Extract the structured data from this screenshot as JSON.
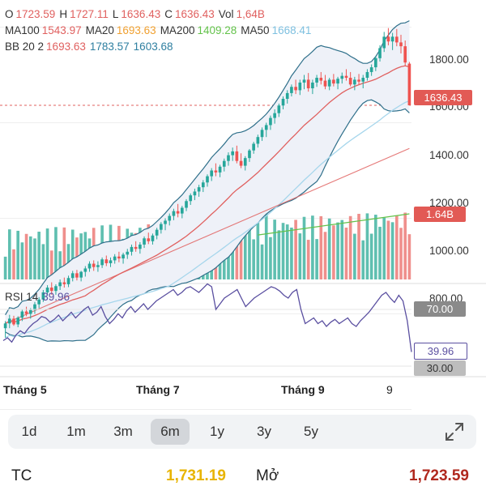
{
  "header": {
    "line1": [
      {
        "label": "O",
        "value": "1723.59",
        "color": "#e0605f"
      },
      {
        "label": "H",
        "value": "1727.11",
        "color": "#e0605f"
      },
      {
        "label": "L",
        "value": "1636.43",
        "color": "#e0605f"
      },
      {
        "label": "C",
        "value": "1636.43",
        "color": "#e0605f"
      },
      {
        "label": "Vol",
        "value": "1,64B",
        "color": "#e0605f"
      }
    ],
    "line2": [
      {
        "label": "MA100",
        "value": "1543.97",
        "color": "#e0605f"
      },
      {
        "label": "MA20",
        "value": "1693.63",
        "color": "#f0a030"
      },
      {
        "label": "MA200",
        "value": "1409.28",
        "color": "#63c24a"
      },
      {
        "label": "MA50",
        "value": "1668.41",
        "color": "#7ec0e0"
      }
    ],
    "line3": [
      {
        "label": "BB 20 2",
        "value": "1693.63",
        "color": "#e0605f"
      },
      {
        "label": "",
        "value": "1783.57",
        "color": "#2e7fa0"
      },
      {
        "label": "",
        "value": "1603.68",
        "color": "#2e7fa0"
      }
    ],
    "rsi": {
      "label": "RSI 14",
      "value": "39.96",
      "color": "#5a4fa0"
    }
  },
  "price_axis": [
    "1800.00",
    "1600.00",
    "1400.00",
    "1200.00",
    "1000.00",
    "800.00"
  ],
  "tags": {
    "last_price": "1636.43",
    "volume": "1.64B",
    "rsi_upper": "70.00",
    "rsi_value": "39.96",
    "rsi_lower": "30.00"
  },
  "months": [
    "Tháng 5",
    "Tháng 7",
    "Tháng 9",
    "9"
  ],
  "ranges": {
    "items": [
      "1d",
      "1m",
      "3m",
      "6m",
      "1y",
      "3y",
      "5y"
    ],
    "selected": "6m"
  },
  "footer": {
    "left_label": "TC",
    "left_value": "1,731.19",
    "right_label": "Mở",
    "right_value": "1,723.59"
  },
  "colors": {
    "up": "#26a69a",
    "down": "#ef5350",
    "vol_up": "#5fbfb0",
    "vol_down": "#ef8f8c",
    "ma100": "#e0605f",
    "ma20": "#f0a030",
    "ma200": "#63c24a",
    "ma50": "#a6d6ec",
    "bb": "#2e6f8a",
    "rsi": "#5a4fa0",
    "tc_value": "#e8b400",
    "open_value": "#b0281e"
  },
  "chart_data": {
    "type": "candlestick",
    "price_range": [
      700,
      1900
    ],
    "ohlc": [
      [
        1170,
        1185,
        1150,
        1180
      ],
      [
        1180,
        1198,
        1170,
        1190
      ],
      [
        1190,
        1196,
        1175,
        1178
      ],
      [
        1178,
        1195,
        1172,
        1192
      ],
      [
        1192,
        1210,
        1185,
        1205
      ],
      [
        1205,
        1215,
        1195,
        1200
      ],
      [
        1200,
        1212,
        1190,
        1208
      ],
      [
        1208,
        1225,
        1200,
        1220
      ],
      [
        1220,
        1235,
        1212,
        1230
      ],
      [
        1230,
        1250,
        1225,
        1245
      ],
      [
        1245,
        1260,
        1238,
        1255
      ],
      [
        1255,
        1266,
        1240,
        1248
      ],
      [
        1248,
        1262,
        1240,
        1258
      ],
      [
        1258,
        1272,
        1250,
        1266
      ],
      [
        1266,
        1276,
        1255,
        1262
      ],
      [
        1262,
        1280,
        1256,
        1275
      ],
      [
        1275,
        1290,
        1268,
        1285
      ],
      [
        1285,
        1292,
        1270,
        1276
      ],
      [
        1276,
        1290,
        1268,
        1288
      ],
      [
        1288,
        1300,
        1278,
        1295
      ],
      [
        1295,
        1310,
        1288,
        1305
      ],
      [
        1305,
        1312,
        1290,
        1298
      ],
      [
        1298,
        1310,
        1288,
        1302
      ],
      [
        1302,
        1318,
        1296,
        1314
      ],
      [
        1314,
        1322,
        1300,
        1306
      ],
      [
        1306,
        1318,
        1298,
        1312
      ],
      [
        1312,
        1325,
        1305,
        1320
      ],
      [
        1320,
        1330,
        1308,
        1316
      ],
      [
        1316,
        1328,
        1305,
        1324
      ],
      [
        1324,
        1336,
        1315,
        1330
      ],
      [
        1330,
        1345,
        1322,
        1340
      ],
      [
        1340,
        1352,
        1330,
        1336
      ],
      [
        1336,
        1350,
        1326,
        1345
      ],
      [
        1345,
        1362,
        1338,
        1358
      ],
      [
        1358,
        1370,
        1346,
        1352
      ],
      [
        1352,
        1368,
        1345,
        1364
      ],
      [
        1364,
        1380,
        1356,
        1376
      ],
      [
        1376,
        1392,
        1368,
        1388
      ],
      [
        1388,
        1400,
        1375,
        1395
      ],
      [
        1395,
        1410,
        1385,
        1405
      ],
      [
        1405,
        1420,
        1396,
        1415
      ],
      [
        1415,
        1430,
        1402,
        1410
      ],
      [
        1410,
        1426,
        1400,
        1422
      ],
      [
        1422,
        1440,
        1415,
        1436
      ],
      [
        1436,
        1452,
        1428,
        1448
      ],
      [
        1448,
        1462,
        1438,
        1456
      ],
      [
        1456,
        1470,
        1445,
        1465
      ],
      [
        1465,
        1480,
        1455,
        1475
      ],
      [
        1475,
        1492,
        1466,
        1488
      ],
      [
        1488,
        1505,
        1478,
        1500
      ],
      [
        1500,
        1515,
        1488,
        1496
      ],
      [
        1496,
        1512,
        1486,
        1508
      ],
      [
        1508,
        1525,
        1498,
        1520
      ],
      [
        1520,
        1538,
        1510,
        1532
      ],
      [
        1532,
        1548,
        1520,
        1540
      ],
      [
        1540,
        1552,
        1515,
        1520
      ],
      [
        1520,
        1536,
        1505,
        1510
      ],
      [
        1510,
        1530,
        1500,
        1526
      ],
      [
        1526,
        1545,
        1518,
        1542
      ],
      [
        1542,
        1560,
        1535,
        1556
      ],
      [
        1556,
        1575,
        1548,
        1570
      ],
      [
        1570,
        1590,
        1562,
        1585
      ],
      [
        1585,
        1600,
        1570,
        1595
      ],
      [
        1595,
        1615,
        1585,
        1610
      ],
      [
        1610,
        1628,
        1598,
        1620
      ],
      [
        1620,
        1640,
        1612,
        1636
      ],
      [
        1636,
        1655,
        1628,
        1650
      ],
      [
        1650,
        1668,
        1640,
        1662
      ],
      [
        1662,
        1680,
        1655,
        1675
      ],
      [
        1675,
        1690,
        1660,
        1668
      ],
      [
        1668,
        1690,
        1658,
        1684
      ],
      [
        1684,
        1700,
        1670,
        1690
      ],
      [
        1690,
        1704,
        1665,
        1672
      ],
      [
        1672,
        1690,
        1660,
        1684
      ],
      [
        1684,
        1700,
        1675,
        1694
      ],
      [
        1694,
        1706,
        1680,
        1688
      ],
      [
        1688,
        1700,
        1670,
        1676
      ],
      [
        1676,
        1694,
        1668,
        1690
      ],
      [
        1690,
        1702,
        1676,
        1682
      ],
      [
        1682,
        1696,
        1670,
        1692
      ],
      [
        1692,
        1705,
        1682,
        1698
      ],
      [
        1698,
        1712,
        1688,
        1694
      ],
      [
        1694,
        1706,
        1676,
        1680
      ],
      [
        1680,
        1696,
        1668,
        1690
      ],
      [
        1690,
        1702,
        1680,
        1686
      ],
      [
        1686,
        1700,
        1672,
        1694
      ],
      [
        1694,
        1712,
        1688,
        1706
      ],
      [
        1706,
        1722,
        1698,
        1716
      ],
      [
        1716,
        1740,
        1708,
        1735
      ],
      [
        1735,
        1762,
        1728,
        1756
      ],
      [
        1756,
        1790,
        1748,
        1780
      ],
      [
        1780,
        1798,
        1762,
        1770
      ],
      [
        1770,
        1788,
        1752,
        1780
      ],
      [
        1780,
        1796,
        1760,
        1768
      ],
      [
        1768,
        1784,
        1745,
        1760
      ],
      [
        1760,
        1772,
        1718,
        1726
      ],
      [
        1723.59,
        1727.11,
        1636.43,
        1636.43
      ]
    ],
    "volume_range": [
      0,
      1.64
    ],
    "rsi": [
      48,
      50,
      47,
      52,
      55,
      53,
      57,
      60,
      62,
      65,
      64,
      61,
      63,
      66,
      62,
      65,
      68,
      64,
      67,
      70,
      72,
      66,
      68,
      72,
      65,
      60,
      63,
      67,
      64,
      69,
      72,
      68,
      71,
      74,
      70,
      73,
      76,
      78,
      80,
      82,
      84,
      80,
      82,
      85,
      86,
      84,
      82,
      85,
      88,
      86,
      70,
      74,
      78,
      80,
      82,
      84,
      78,
      72,
      75,
      78,
      80,
      82,
      84,
      86,
      85,
      83,
      80,
      78,
      82,
      84,
      70,
      60,
      62,
      64,
      60,
      62,
      58,
      61,
      63,
      60,
      62,
      64,
      60,
      58,
      62,
      65,
      68,
      72,
      76,
      80,
      82,
      78,
      75,
      80,
      76,
      62,
      39.96
    ]
  }
}
